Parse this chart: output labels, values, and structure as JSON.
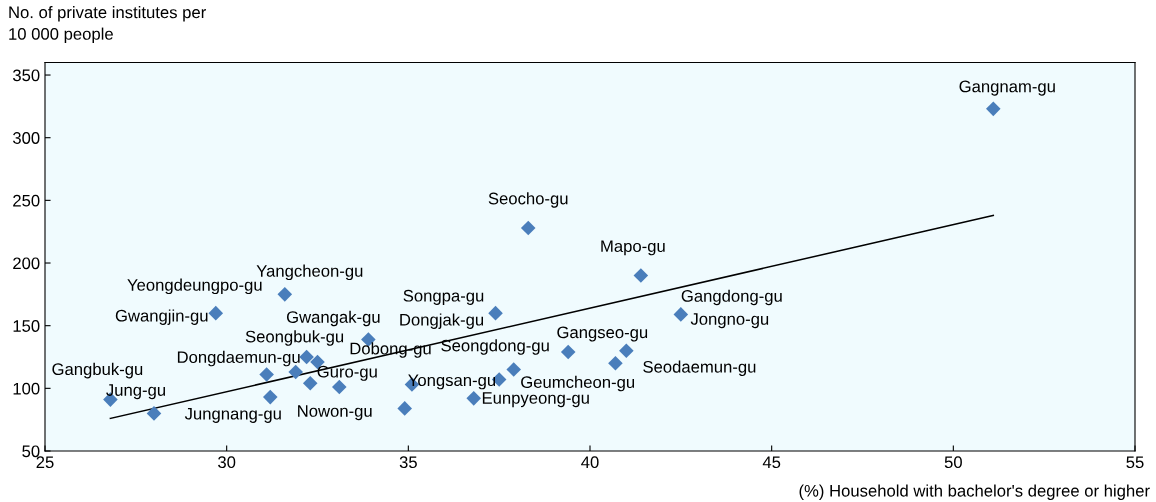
{
  "chart_data": {
    "type": "scatter",
    "xlabel": "(%) Household with bachelor's degree or higher",
    "ylabel": "No. of private institutes per\n10 000 people",
    "xlim": [
      25,
      55
    ],
    "xticks": [
      25,
      30,
      35,
      40,
      45,
      50,
      55
    ],
    "ylim": [
      50,
      360
    ],
    "yticks": [
      50,
      100,
      150,
      200,
      250,
      300,
      350
    ],
    "grid": false,
    "marker": "diamond",
    "series": [
      {
        "color": "#4a7ebb",
        "x": [
          51.1,
          38.3,
          41.4,
          42.5,
          37.4,
          41.0,
          40.7,
          39.4,
          37.9,
          37.5,
          36.8,
          35.1,
          34.9,
          33.1,
          32.3,
          33.9,
          32.5,
          32.2,
          31.9,
          31.1,
          31.2,
          28.0,
          26.8,
          29.7,
          31.6
        ],
        "values": [
          323,
          228,
          190,
          159,
          160,
          130,
          120,
          129,
          115,
          107,
          92,
          103,
          84,
          101,
          104,
          139,
          121,
          125,
          113,
          111,
          93,
          80,
          91,
          160,
          175
        ]
      },
      {
        "type": "line",
        "marker": "none",
        "color": "#000000",
        "x": [
          26.8,
          51.1
        ],
        "values": [
          76,
          238
        ]
      }
    ],
    "annotations": [
      {
        "text": "Gangnam-gu",
        "x": 51.1,
        "y": 323
      },
      {
        "text": "Seocho-gu",
        "x": 38.3,
        "y": 228
      },
      {
        "text": "Mapo-gu",
        "x": 41.4,
        "y": 190
      },
      {
        "text": "Gangdong-gu",
        "x": 42.5,
        "y": 159
      },
      {
        "text": "Jongno-gu",
        "x": 42.5,
        "y": 159
      },
      {
        "text": "Songpa-gu",
        "x": 37.4,
        "y": 160
      },
      {
        "text": "Dongjak-gu",
        "x": 37.4,
        "y": 160
      },
      {
        "text": "Gangseo-gu",
        "x": 41.0,
        "y": 130
      },
      {
        "text": "Seodaemun-gu",
        "x": 40.7,
        "y": 120
      },
      {
        "text": "Seongdong-gu",
        "x": 39.4,
        "y": 129
      },
      {
        "text": "Geumcheon-gu",
        "x": 37.9,
        "y": 115
      },
      {
        "text": "Eunpyeong-gu",
        "x": 36.8,
        "y": 92
      },
      {
        "text": "Yongsan-gu",
        "x": 35.1,
        "y": 103
      },
      {
        "text": "Nowon-gu",
        "x": 34.9,
        "y": 84
      },
      {
        "text": "Guro-gu",
        "x": 33.1,
        "y": 101
      },
      {
        "text": "Dobong-gu",
        "x": 32.5,
        "y": 121
      },
      {
        "text": "Gwangak-gu",
        "x": 33.9,
        "y": 139
      },
      {
        "text": "Seongbuk-gu",
        "x": 32.2,
        "y": 125
      },
      {
        "text": "Dongdaemun-gu",
        "x": 31.1,
        "y": 111
      },
      {
        "text": "Jungnang-gu",
        "x": 31.2,
        "y": 93
      },
      {
        "text": "Jung-gu",
        "x": 28.0,
        "y": 80
      },
      {
        "text": "Gangbuk-gu",
        "x": 26.8,
        "y": 91
      },
      {
        "text": "Gwangjin-gu",
        "x": 29.7,
        "y": 160
      },
      {
        "text": "Yeongdeungpo-gu",
        "x": 31.6,
        "y": 175
      },
      {
        "text": "Yangcheon-gu",
        "x": 31.6,
        "y": 175
      }
    ]
  }
}
